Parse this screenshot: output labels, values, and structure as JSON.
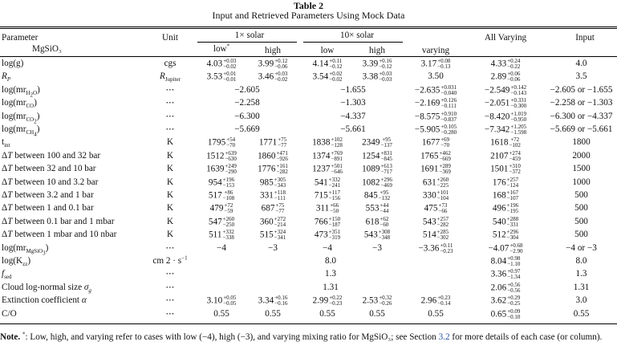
{
  "caption": {
    "label": "Table 2",
    "title": "Input and Retrieved Parameters Using Mock Data"
  },
  "header": {
    "parameter": "Parameter",
    "subparam": "MgSiO₃",
    "unit": "Unit",
    "solar1": "1× solar",
    "solar10": "10× solar",
    "low": "low",
    "low_mark": "*",
    "high": "high",
    "varying": "varying",
    "all_varying": "All Varying",
    "input": "Input"
  },
  "rows": [
    {
      "param": "log(g)",
      "unit": "cgs",
      "cells": [
        [
          "4.03",
          "+0.03",
          "−0.02"
        ],
        [
          "3.99",
          "+0.12",
          "−0.06"
        ],
        [
          "4.14",
          "+0.11",
          "−0.12"
        ],
        [
          "3.39",
          "+0.16",
          "−0.12"
        ],
        [
          "3.17",
          "+0.08",
          "−0.13"
        ],
        [
          "4.33",
          "+0.24",
          "−0.22"
        ]
      ],
      "input": "4.0"
    },
    {
      "param": "R_P",
      "unit": "R_Jupiter",
      "cells": [
        [
          "3.53",
          "+0.01",
          "−0.01"
        ],
        [
          "3.46",
          "+0.03",
          "−0.02"
        ],
        [
          "3.54",
          "+0.02",
          "−0.02"
        ],
        [
          "3.38",
          "+0.03",
          "−0.03"
        ],
        [
          "3.50",
          "",
          ""
        ],
        [
          "2.89",
          "+0.06",
          "−0.06"
        ]
      ],
      "input": "3.5"
    },
    {
      "param": "log(mr_H2O)",
      "unit": "⋯",
      "span1": "−2.605",
      "span10": "−1.655",
      "cells": [
        null,
        null,
        null,
        null,
        [
          "−2.635",
          "+0.031",
          "−0.040"
        ],
        [
          "−2.549",
          "+0.142",
          "−0.143"
        ]
      ],
      "input": "−2.605 or −1.655"
    },
    {
      "param": "log(mr_CO)",
      "unit": "⋯",
      "span1": "−2.258",
      "span10": "−1.303",
      "cells": [
        null,
        null,
        null,
        null,
        [
          "−2.169",
          "+0.126",
          "−0.111"
        ],
        [
          "−2.051",
          "+0.331",
          "−0.300"
        ]
      ],
      "input": "−2.258 or −1.303"
    },
    {
      "param": "log(mr_CO2)",
      "unit": "⋯",
      "span1": "−6.300",
      "span10": "−4.337",
      "cells": [
        null,
        null,
        null,
        null,
        [
          "−8.575",
          "+0.910",
          "−0.837"
        ],
        [
          "−8.420",
          "+1.019",
          "−0.950"
        ]
      ],
      "input": "−6.300 or −4.337"
    },
    {
      "param": "log(mr_CH4)",
      "unit": "⋯",
      "span1": "−5.669",
      "span10": "−5.661",
      "cells": [
        null,
        null,
        null,
        null,
        [
          "−5.905",
          "+0.105",
          "−0.280"
        ],
        [
          "−7.342",
          "+1.205",
          "−1.598"
        ]
      ],
      "input": "−5.669 or −5.661"
    },
    {
      "param": "t_int",
      "unit": "K",
      "cells": [
        [
          "1795",
          "+54",
          "−70"
        ],
        [
          "1771",
          "+75",
          "−77"
        ],
        [
          "1838",
          "+102",
          "−128"
        ],
        [
          "2349",
          "+95",
          "−137"
        ],
        [
          "1677",
          "+69",
          "−70"
        ],
        [
          "1618",
          "+72",
          "−102"
        ]
      ],
      "input": "1800"
    },
    {
      "param": "ΔT between 100 and 32 bar",
      "unit": "K",
      "cells": [
        [
          "1512",
          "+639",
          "−630"
        ],
        [
          "1860",
          "+471",
          "−926"
        ],
        [
          "1374",
          "+769",
          "−891"
        ],
        [
          "1254",
          "+831",
          "−845"
        ],
        [
          "1765",
          "+462",
          "−669"
        ],
        [
          "2107",
          "+274",
          "−459"
        ]
      ],
      "input": "2000"
    },
    {
      "param": "ΔT between 32 and 10 bar",
      "unit": "K",
      "cells": [
        [
          "1639",
          "+249",
          "−290"
        ],
        [
          "1776",
          "+161",
          "−282"
        ],
        [
          "1237",
          "+501",
          "−646"
        ],
        [
          "1089",
          "+613",
          "−717"
        ],
        [
          "1691",
          "+289",
          "−369"
        ],
        [
          "1501",
          "+310",
          "−372"
        ]
      ],
      "input": "1500"
    },
    {
      "param": "ΔT between 10 and 3.2 bar",
      "unit": "K",
      "cells": [
        [
          "954",
          "+196",
          "−153"
        ],
        [
          "985",
          "+305",
          "−343"
        ],
        [
          "541",
          "+332",
          "−241"
        ],
        [
          "1082",
          "+296",
          "−469"
        ],
        [
          "631",
          "+260",
          "−225"
        ],
        [
          "176",
          "+257",
          "−124"
        ]
      ],
      "input": "1000"
    },
    {
      "param": "ΔT between 3.2 and 1 bar",
      "unit": "K",
      "cells": [
        [
          "517",
          "+86",
          "−108"
        ],
        [
          "331",
          "+118",
          "−111"
        ],
        [
          "715",
          "+117",
          "−156"
        ],
        [
          "845",
          "+95",
          "−132"
        ],
        [
          "330",
          "+101",
          "−104"
        ],
        [
          "168",
          "+167",
          "−107"
        ]
      ],
      "input": "500"
    },
    {
      "param": "ΔT between 1 and 0.1 bar",
      "unit": "K",
      "cells": [
        [
          "479",
          "+72",
          "−59"
        ],
        [
          "687",
          "+75",
          "−77"
        ],
        [
          "311",
          "+66",
          "−50"
        ],
        [
          "553",
          "+44",
          "−44"
        ],
        [
          "475",
          "+73",
          "−66"
        ],
        [
          "496",
          "+196",
          "−195"
        ]
      ],
      "input": "500"
    },
    {
      "param": "ΔT between 0.1 bar and 1 mbar",
      "unit": "K",
      "cells": [
        [
          "547",
          "+260",
          "−250"
        ],
        [
          "360",
          "+272",
          "−214"
        ],
        [
          "766",
          "+150",
          "−187"
        ],
        [
          "618",
          "+62",
          "−60"
        ],
        [
          "543",
          "+257",
          "−282"
        ],
        [
          "540",
          "+288",
          "−331"
        ]
      ],
      "input": "500"
    },
    {
      "param": "ΔT between 1 mbar and 10 nbar",
      "unit": "K",
      "cells": [
        [
          "511",
          "+332",
          "−338"
        ],
        [
          "515",
          "+324",
          "−341"
        ],
        [
          "473",
          "+351",
          "−319"
        ],
        [
          "543",
          "+308",
          "−348"
        ],
        [
          "514",
          "+285",
          "−302"
        ],
        [
          "512",
          "+296",
          "−304"
        ]
      ],
      "input": "500"
    },
    {
      "param": "log(mr_MgSiO3)",
      "unit": "⋯",
      "cells": [
        [
          "−4",
          "",
          ""
        ],
        [
          "−3",
          "",
          ""
        ],
        [
          "−4",
          "",
          ""
        ],
        [
          "−3",
          "",
          ""
        ],
        [
          "−3.36",
          "+0.11",
          "−0.23"
        ],
        [
          "−4.07",
          "+0.68",
          "−2.90"
        ]
      ],
      "input": "−4 or −3"
    },
    {
      "param": "log(K_zz)",
      "unit": "cm 2 · s⁻¹",
      "center": "8.0",
      "cells": [
        null,
        null,
        null,
        null,
        null,
        [
          "8.04",
          "+0.98",
          "−1.10"
        ]
      ],
      "input": "8.0"
    },
    {
      "param": "f_sed",
      "unit": "⋯",
      "center": "1.3",
      "cells": [
        null,
        null,
        null,
        null,
        null,
        [
          "3.36",
          "+0.97",
          "−1.34"
        ]
      ],
      "input": "1.3"
    },
    {
      "param": "Cloud log-normal size σ_g",
      "unit": "⋯",
      "center": "1.31",
      "cells": [
        null,
        null,
        null,
        null,
        null,
        [
          "2.06",
          "+0.56",
          "−0.56"
        ]
      ],
      "input": "1.31"
    },
    {
      "param": "Extinction coefficient α",
      "unit": "⋯",
      "cells": [
        [
          "3.10",
          "+0.05",
          "−0.05"
        ],
        [
          "3.34",
          "+0.16",
          "−0.16"
        ],
        [
          "2.99",
          "+0.22",
          "−0.23"
        ],
        [
          "2.53",
          "+0.32",
          "−0.26"
        ],
        [
          "2.96",
          "+0.23",
          "−0.14"
        ],
        [
          "3.62",
          "+0.29",
          "−0.25"
        ]
      ],
      "input": "3.0"
    },
    {
      "param": "C/O",
      "unit": "⋯",
      "cells": [
        [
          "0.55",
          "",
          ""
        ],
        [
          "0.55",
          "",
          ""
        ],
        [
          "0.55",
          "",
          ""
        ],
        [
          "0.55",
          "",
          ""
        ],
        [
          "0.55",
          "",
          ""
        ],
        [
          "0.65",
          "+0.09",
          "−0.10"
        ]
      ],
      "input": "0.55"
    }
  ],
  "note": {
    "label": "Note.",
    "mark": "*",
    "text": ": Low, high, and varying refer to cases with low (−4), high (−3), and varying mixing ratio for MgSiO₃; see Section",
    "section": "3.2",
    "text2": "for more details of each case (or column)."
  }
}
